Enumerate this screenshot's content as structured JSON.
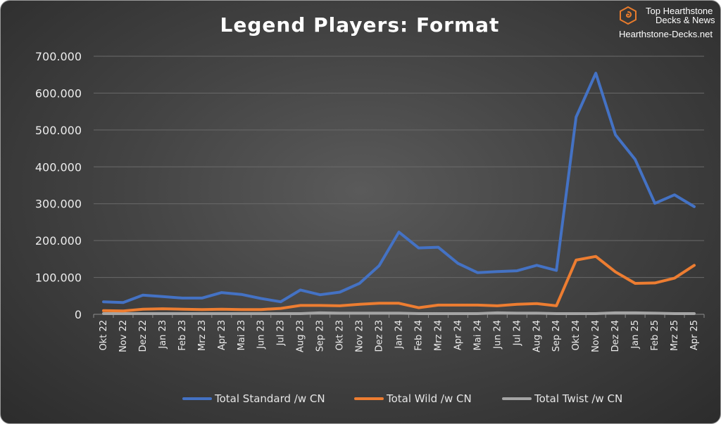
{
  "brand": {
    "line1": "Top Hearthstone",
    "line2": "Decks & News",
    "url": "Hearthstone-Decks.net",
    "logo_icon": "hearthstone-logo-icon",
    "logo_color": "#e87b2c"
  },
  "chart_data": {
    "type": "line",
    "title": "Legend Players: Format",
    "xlabel": "",
    "ylabel": "",
    "ylim": [
      0,
      700000
    ],
    "yticks": [
      0,
      100000,
      200000,
      300000,
      400000,
      500000,
      600000,
      700000
    ],
    "ytick_labels": [
      "0",
      "100.000",
      "200.000",
      "300.000",
      "400.000",
      "500.000",
      "600.000",
      "700.000"
    ],
    "grid": true,
    "legend_position": "bottom",
    "categories": [
      "Okt 22",
      "Nov 22",
      "Dez 22",
      "Jan 23",
      "Feb 23",
      "Mrz 23",
      "Apr 23",
      "Mai 23",
      "Jun 23",
      "Jul 23",
      "Aug 23",
      "Sep 23",
      "Okt 23",
      "Nov 23",
      "Dez 23",
      "Jan 24",
      "Feb 24",
      "Mrz 24",
      "Apr 24",
      "Mai 24",
      "Jun 24",
      "Jul 24",
      "Aug 24",
      "Sep 24",
      "Okt 24",
      "Nov 24",
      "Dez 24",
      "Jan 25",
      "Feb 25",
      "Mrz 25",
      "Apr 25"
    ],
    "series": [
      {
        "name": "Total Standard /w CN",
        "color": "#4472c4",
        "values": [
          34000,
          32000,
          52000,
          48000,
          44000,
          44000,
          59000,
          54000,
          43000,
          34000,
          66000,
          53000,
          60000,
          84000,
          132000,
          223000,
          180000,
          182000,
          138000,
          113000,
          116000,
          118000,
          133000,
          119000,
          535000,
          654000,
          487000,
          420000,
          301000,
          324000,
          292000
        ]
      },
      {
        "name": "Total Wild /w CN",
        "color": "#ed7d31",
        "values": [
          10000,
          9000,
          14000,
          15000,
          14000,
          13000,
          14000,
          13000,
          13000,
          16000,
          24000,
          24000,
          23000,
          27000,
          30000,
          30000,
          18000,
          25000,
          25000,
          25000,
          23000,
          27000,
          29000,
          23000,
          147000,
          157000,
          115000,
          84000,
          85000,
          98000,
          133000
        ]
      },
      {
        "name": "Total Twist /w CN",
        "color": "#a5a5a5",
        "values": [
          2000,
          2000,
          2000,
          2000,
          2000,
          2000,
          2000,
          2000,
          2000,
          2000,
          2000,
          4000,
          3000,
          3000,
          3000,
          3000,
          2000,
          2000,
          2000,
          2000,
          4000,
          3000,
          3000,
          2000,
          2000,
          2000,
          4000,
          4000,
          3000,
          2000,
          2000
        ]
      }
    ]
  }
}
